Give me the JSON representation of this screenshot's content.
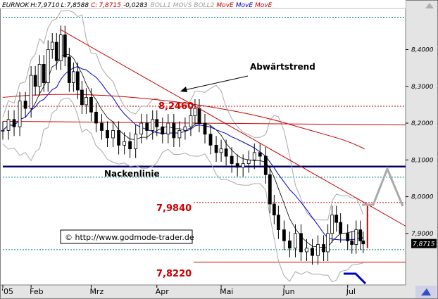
{
  "header": {
    "symbol": "EURNOK",
    "high": "H:7,9710",
    "low": "L:7,8588",
    "close_label": "C:",
    "close": "7,8715",
    "change": "-0,0283",
    "ind1": "BOLL1",
    "ind2": "MOVS",
    "ind3": "BOLL2",
    "ma1": "MovE",
    "ma2": "MovE",
    "ma3": "MovE"
  },
  "colors": {
    "price": "#000000",
    "ma_red": "#cc0000",
    "ma_blue": "#0000cc",
    "boll": "#aaaaaa",
    "support": "#000066",
    "dotted": "#008080",
    "projection_gray": "#aaaaaa",
    "projection_blue": "#0000cc"
  },
  "chart_data": {
    "type": "candlestick",
    "x_axis": {
      "labels": [
        "'05",
        "Feb",
        "Mrz",
        "Apr",
        "Mai",
        "Jun",
        "Jul"
      ],
      "label_days": [
        0,
        40,
        125,
        218,
        309,
        398,
        488
      ]
    },
    "y_axis": {
      "range": [
        7.76,
        8.51
      ],
      "ticks": [
        "8,4000",
        "8,3000",
        "8,2000",
        "8,1000",
        "8,0000",
        "7,9000"
      ],
      "tick_values": [
        8.4,
        8.3,
        8.2,
        8.1,
        8.0,
        7.9
      ],
      "last_value_label": "7,8715",
      "last_value": 7.8715
    },
    "horizontal_levels": [
      {
        "value": 8.246,
        "label": "8,2460",
        "style": "dotted",
        "color": "#cc0000"
      },
      {
        "value": 7.984,
        "label": "7,9840",
        "style": "dotted",
        "color": "#cc0000"
      },
      {
        "value": 7.822,
        "label": "7,8220",
        "style": "solid",
        "color": "#cc0000"
      },
      {
        "value": 8.082,
        "label": "Nackenlinie",
        "style": "solid-thick",
        "color": "#000066"
      },
      {
        "value": 8.053,
        "style": "dotted",
        "color": "#008080"
      },
      {
        "value": 7.856,
        "style": "dotted",
        "color": "#008080"
      },
      {
        "value": 8.488,
        "style": "dotted",
        "color": "#008080"
      }
    ],
    "trendlines": [
      {
        "label": "Abwärtstrend",
        "from": [
          81,
          8.455
        ],
        "to": [
          570,
          7.92
        ],
        "color": "#cc0000"
      }
    ],
    "annotations": [
      {
        "text": "Abwärtstrend",
        "position": "top-center"
      },
      {
        "text": "© http://www.godmode-trader.de",
        "position": "bottom-left"
      }
    ],
    "close_series": [
      {
        "day": 0,
        "close": 8.18
      },
      {
        "day": 8,
        "close": 8.21
      },
      {
        "day": 16,
        "close": 8.19
      },
      {
        "day": 24,
        "close": 8.26
      },
      {
        "day": 32,
        "close": 8.24
      },
      {
        "day": 40,
        "close": 8.33
      },
      {
        "day": 46,
        "close": 8.3
      },
      {
        "day": 52,
        "close": 8.36
      },
      {
        "day": 58,
        "close": 8.31
      },
      {
        "day": 64,
        "close": 8.4
      },
      {
        "day": 70,
        "close": 8.42
      },
      {
        "day": 76,
        "close": 8.37
      },
      {
        "day": 82,
        "close": 8.44
      },
      {
        "day": 88,
        "close": 8.38
      },
      {
        "day": 94,
        "close": 8.31
      },
      {
        "day": 100,
        "close": 8.34
      },
      {
        "day": 106,
        "close": 8.29
      },
      {
        "day": 112,
        "close": 8.25
      },
      {
        "day": 118,
        "close": 8.27
      },
      {
        "day": 125,
        "close": 8.23
      },
      {
        "day": 132,
        "close": 8.2
      },
      {
        "day": 140,
        "close": 8.18
      },
      {
        "day": 148,
        "close": 8.16
      },
      {
        "day": 156,
        "close": 8.18
      },
      {
        "day": 164,
        "close": 8.14
      },
      {
        "day": 172,
        "close": 8.15
      },
      {
        "day": 180,
        "close": 8.13
      },
      {
        "day": 188,
        "close": 8.17
      },
      {
        "day": 196,
        "close": 8.2
      },
      {
        "day": 204,
        "close": 8.18
      },
      {
        "day": 212,
        "close": 8.21
      },
      {
        "day": 218,
        "close": 8.19
      },
      {
        "day": 226,
        "close": 8.17
      },
      {
        "day": 234,
        "close": 8.2
      },
      {
        "day": 242,
        "close": 8.16
      },
      {
        "day": 250,
        "close": 8.18
      },
      {
        "day": 258,
        "close": 8.19
      },
      {
        "day": 266,
        "close": 8.22
      },
      {
        "day": 272,
        "close": 8.24
      },
      {
        "day": 278,
        "close": 8.2
      },
      {
        "day": 286,
        "close": 8.17
      },
      {
        "day": 294,
        "close": 8.14
      },
      {
        "day": 302,
        "close": 8.12
      },
      {
        "day": 309,
        "close": 8.13
      },
      {
        "day": 316,
        "close": 8.11
      },
      {
        "day": 324,
        "close": 8.09
      },
      {
        "day": 332,
        "close": 8.08
      },
      {
        "day": 340,
        "close": 8.09
      },
      {
        "day": 348,
        "close": 8.1
      },
      {
        "day": 356,
        "close": 8.12
      },
      {
        "day": 364,
        "close": 8.11
      },
      {
        "day": 372,
        "close": 8.06
      },
      {
        "day": 378,
        "close": 7.98
      },
      {
        "day": 384,
        "close": 7.95
      },
      {
        "day": 390,
        "close": 7.91
      },
      {
        "day": 398,
        "close": 7.88
      },
      {
        "day": 406,
        "close": 7.86
      },
      {
        "day": 414,
        "close": 7.9
      },
      {
        "day": 422,
        "close": 7.85
      },
      {
        "day": 430,
        "close": 7.86
      },
      {
        "day": 438,
        "close": 7.84
      },
      {
        "day": 446,
        "close": 7.87
      },
      {
        "day": 454,
        "close": 7.85
      },
      {
        "day": 460,
        "close": 7.9
      },
      {
        "day": 466,
        "close": 7.95
      },
      {
        "day": 472,
        "close": 7.93
      },
      {
        "day": 478,
        "close": 7.9
      },
      {
        "day": 488,
        "close": 7.88
      },
      {
        "day": 494,
        "close": 7.87
      },
      {
        "day": 500,
        "close": 7.91
      },
      {
        "day": 506,
        "close": 7.88
      },
      {
        "day": 510,
        "close": 7.8715
      }
    ],
    "grid": false,
    "legend": "header-top-left"
  },
  "copyright": "© http://www.godmode-trader.de"
}
